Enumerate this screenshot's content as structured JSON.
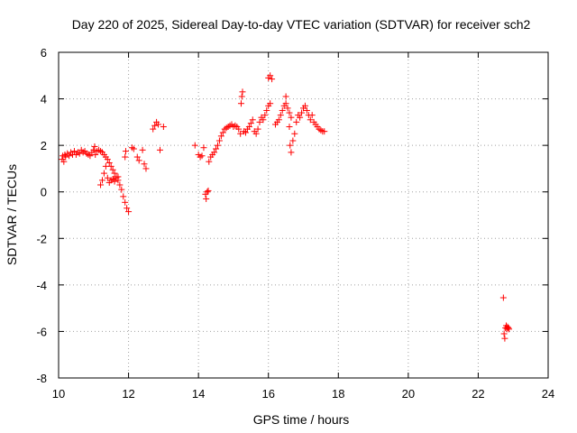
{
  "chart_data": {
    "type": "scatter",
    "title": "Day 220 of 2025, Sidereal Day-to-day VTEC variation (SDTVAR) for receiver sch2",
    "xlabel": "GPS time / hours",
    "ylabel": "SDTVAR / TECUs",
    "xlim": [
      10,
      24
    ],
    "ylim": [
      -8,
      6
    ],
    "xticks": [
      10,
      12,
      14,
      16,
      18,
      20,
      22,
      24
    ],
    "yticks": [
      -8,
      -6,
      -4,
      -2,
      0,
      2,
      4,
      6
    ],
    "xtick_labels": [
      "10",
      "12",
      "14",
      "16",
      "18",
      "20",
      "22",
      "24"
    ],
    "ytick_labels": [
      "-8",
      "-6",
      "-4",
      "-2",
      "0",
      "2",
      "4",
      "6"
    ],
    "grid": true,
    "marker": "+",
    "color": "#ff0000",
    "series": [
      {
        "name": "SDTVAR",
        "points": [
          [
            10.1,
            1.4
          ],
          [
            10.12,
            1.55
          ],
          [
            10.15,
            1.3
          ],
          [
            10.18,
            1.6
          ],
          [
            10.2,
            1.5
          ],
          [
            10.25,
            1.65
          ],
          [
            10.3,
            1.55
          ],
          [
            10.35,
            1.7
          ],
          [
            10.4,
            1.6
          ],
          [
            10.45,
            1.75
          ],
          [
            10.5,
            1.6
          ],
          [
            10.55,
            1.7
          ],
          [
            10.6,
            1.65
          ],
          [
            10.65,
            1.8
          ],
          [
            10.7,
            1.7
          ],
          [
            10.75,
            1.75
          ],
          [
            10.8,
            1.65
          ],
          [
            10.85,
            1.6
          ],
          [
            10.9,
            1.55
          ],
          [
            10.95,
            1.7
          ],
          [
            11.0,
            1.8
          ],
          [
            11.03,
            1.95
          ],
          [
            11.05,
            1.6
          ],
          [
            11.1,
            1.75
          ],
          [
            11.15,
            1.8
          ],
          [
            11.2,
            1.75
          ],
          [
            11.25,
            1.7
          ],
          [
            11.3,
            1.6
          ],
          [
            11.35,
            1.5
          ],
          [
            11.4,
            1.4
          ],
          [
            11.45,
            1.25
          ],
          [
            11.5,
            1.1
          ],
          [
            11.55,
            0.95
          ],
          [
            11.6,
            0.8
          ],
          [
            11.65,
            0.65
          ],
          [
            11.7,
            0.5
          ],
          [
            11.75,
            0.3
          ],
          [
            11.8,
            0.1
          ],
          [
            11.85,
            -0.2
          ],
          [
            11.9,
            -0.45
          ],
          [
            11.95,
            -0.7
          ],
          [
            12.0,
            -0.85
          ],
          [
            11.2,
            0.3
          ],
          [
            11.25,
            0.5
          ],
          [
            11.3,
            0.8
          ],
          [
            11.35,
            1.1
          ],
          [
            11.4,
            0.6
          ],
          [
            11.45,
            0.4
          ],
          [
            11.5,
            0.5
          ],
          [
            11.55,
            0.55
          ],
          [
            11.6,
            0.45
          ],
          [
            11.65,
            0.6
          ],
          [
            11.7,
            0.65
          ],
          [
            11.9,
            1.5
          ],
          [
            11.92,
            1.75
          ],
          [
            12.1,
            1.9
          ],
          [
            12.15,
            1.85
          ],
          [
            12.25,
            1.5
          ],
          [
            12.3,
            1.35
          ],
          [
            12.4,
            1.8
          ],
          [
            12.45,
            1.2
          ],
          [
            12.5,
            1.0
          ],
          [
            12.7,
            2.7
          ],
          [
            12.75,
            2.85
          ],
          [
            12.8,
            3.0
          ],
          [
            12.85,
            2.9
          ],
          [
            12.9,
            1.8
          ],
          [
            13.0,
            2.8
          ],
          [
            13.9,
            2.0
          ],
          [
            14.0,
            1.6
          ],
          [
            14.05,
            1.5
          ],
          [
            14.1,
            1.55
          ],
          [
            14.15,
            1.9
          ],
          [
            14.2,
            -0.1
          ],
          [
            14.22,
            -0.3
          ],
          [
            14.25,
            0.0
          ],
          [
            14.28,
            0.05
          ],
          [
            14.3,
            1.3
          ],
          [
            14.35,
            1.5
          ],
          [
            14.4,
            1.6
          ],
          [
            14.45,
            1.7
          ],
          [
            14.5,
            1.85
          ],
          [
            14.55,
            2.0
          ],
          [
            14.6,
            2.2
          ],
          [
            14.65,
            2.4
          ],
          [
            14.7,
            2.55
          ],
          [
            14.75,
            2.7
          ],
          [
            14.8,
            2.75
          ],
          [
            14.85,
            2.8
          ],
          [
            14.9,
            2.85
          ],
          [
            14.95,
            2.9
          ],
          [
            15.0,
            2.8
          ],
          [
            15.05,
            2.85
          ],
          [
            15.1,
            2.8
          ],
          [
            15.15,
            2.7
          ],
          [
            15.2,
            2.5
          ],
          [
            15.22,
            3.8
          ],
          [
            15.24,
            4.1
          ],
          [
            15.26,
            4.3
          ],
          [
            15.3,
            2.6
          ],
          [
            15.35,
            2.55
          ],
          [
            15.4,
            2.7
          ],
          [
            15.45,
            2.8
          ],
          [
            15.5,
            2.95
          ],
          [
            15.55,
            3.1
          ],
          [
            15.6,
            2.6
          ],
          [
            15.65,
            2.5
          ],
          [
            15.7,
            2.7
          ],
          [
            15.75,
            3.0
          ],
          [
            15.8,
            3.2
          ],
          [
            15.85,
            3.1
          ],
          [
            15.9,
            3.3
          ],
          [
            15.95,
            3.5
          ],
          [
            16.0,
            3.7
          ],
          [
            16.05,
            3.8
          ],
          [
            16.0,
            4.9
          ],
          [
            16.05,
            5.0
          ],
          [
            16.1,
            4.85
          ],
          [
            16.2,
            2.9
          ],
          [
            16.25,
            3.0
          ],
          [
            16.3,
            3.1
          ],
          [
            16.35,
            3.3
          ],
          [
            16.4,
            3.5
          ],
          [
            16.45,
            3.7
          ],
          [
            16.5,
            3.8
          ],
          [
            16.55,
            3.6
          ],
          [
            16.6,
            3.4
          ],
          [
            16.65,
            3.2
          ],
          [
            16.5,
            4.1
          ],
          [
            16.6,
            2.8
          ],
          [
            16.62,
            2.0
          ],
          [
            16.65,
            1.7
          ],
          [
            16.7,
            2.2
          ],
          [
            16.75,
            2.5
          ],
          [
            16.8,
            3.0
          ],
          [
            16.85,
            3.3
          ],
          [
            16.9,
            3.2
          ],
          [
            16.95,
            3.4
          ],
          [
            17.0,
            3.6
          ],
          [
            17.05,
            3.7
          ],
          [
            17.1,
            3.5
          ],
          [
            17.15,
            3.3
          ],
          [
            17.2,
            3.1
          ],
          [
            17.25,
            3.3
          ],
          [
            17.3,
            3.0
          ],
          [
            17.35,
            2.9
          ],
          [
            17.4,
            2.8
          ],
          [
            17.45,
            2.7
          ],
          [
            17.5,
            2.65
          ],
          [
            17.55,
            2.6
          ],
          [
            17.6,
            2.6
          ],
          [
            22.72,
            -4.55
          ],
          [
            22.74,
            -6.1
          ],
          [
            22.76,
            -6.3
          ],
          [
            22.78,
            -5.85
          ],
          [
            22.8,
            -5.75
          ],
          [
            22.82,
            -5.9
          ],
          [
            22.84,
            -5.8
          ],
          [
            22.86,
            -5.85
          ],
          [
            22.88,
            -5.9
          ]
        ]
      }
    ]
  }
}
